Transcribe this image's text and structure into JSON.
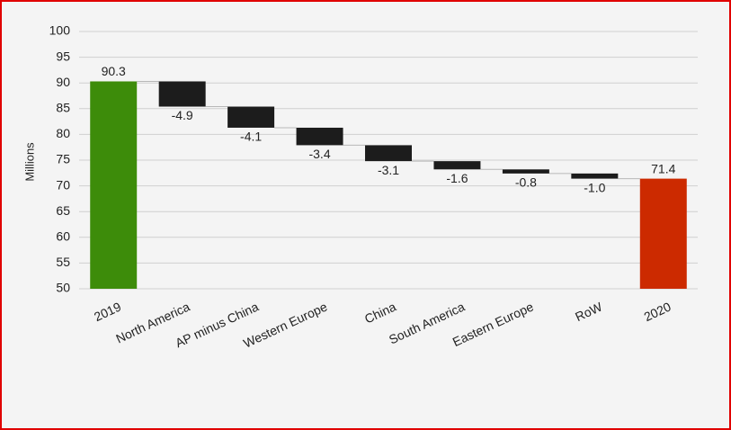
{
  "chart_data": {
    "type": "waterfall",
    "y_label": "Millions",
    "categories": [
      "2019",
      "North America",
      "AP minus China",
      "Western Europe",
      "China",
      "South America",
      "Eastern Europe",
      "RoW",
      "2020"
    ],
    "values": [
      90.3,
      -4.9,
      -4.1,
      -3.4,
      -3.1,
      -1.6,
      -0.8,
      -1.0,
      71.4
    ],
    "value_labels": [
      "90.3",
      "-4.9",
      "-4.1",
      "-3.4",
      "-3.1",
      "-1.6",
      "-0.8",
      "-1.0",
      "71.4"
    ],
    "colors": [
      "#3d8c0a",
      "#1c1c1c",
      "#1c1c1c",
      "#1c1c1c",
      "#1c1c1c",
      "#1c1c1c",
      "#1c1c1c",
      "#1c1c1c",
      "#cc2a00"
    ],
    "ylim": [
      50,
      100
    ],
    "yticks": [
      50,
      55,
      60,
      65,
      70,
      75,
      80,
      85,
      90,
      95,
      100
    ],
    "grid": true
  }
}
